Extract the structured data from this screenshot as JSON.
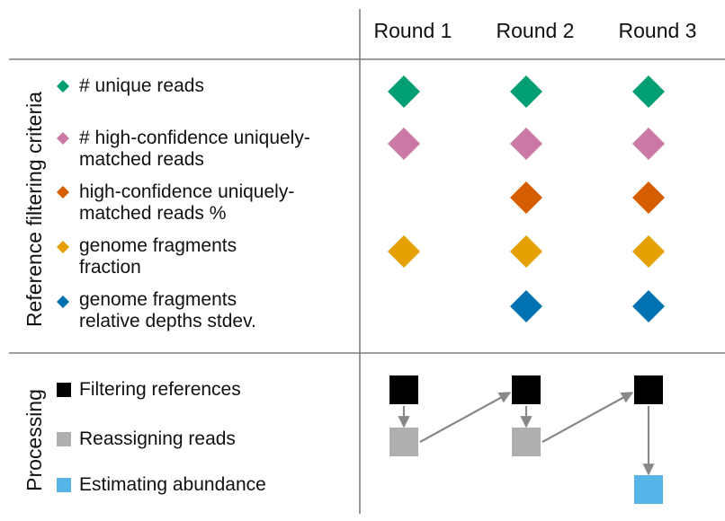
{
  "headers": [
    "Round 1",
    "Round 2",
    "Round 3"
  ],
  "sections": {
    "criteria_title": "Reference filtering criteria",
    "processing_title": "Processing"
  },
  "criteria": [
    {
      "line1": "# unique reads",
      "line2": "",
      "color": "#009E73",
      "rounds": [
        true,
        true,
        true
      ]
    },
    {
      "line1": "# high-confidence uniquely-",
      "line2": "matched reads",
      "color": "#CC79A7",
      "rounds": [
        true,
        true,
        true
      ]
    },
    {
      "line1": "high-confidence uniquely-",
      "line2": "matched reads %",
      "color": "#D55E00",
      "rounds": [
        false,
        true,
        true
      ]
    },
    {
      "line1": "genome fragments",
      "line2": "fraction",
      "color": "#E69F00",
      "rounds": [
        true,
        true,
        true
      ]
    },
    {
      "line1": "genome fragments",
      "line2": "relative depths stdev.",
      "color": "#0072B2",
      "rounds": [
        false,
        true,
        true
      ]
    }
  ],
  "processing": [
    {
      "label": "Filtering references",
      "color": "#000000"
    },
    {
      "label": "Reassigning reads",
      "color": "#B0AEAE"
    },
    {
      "label": "Estimating abundance",
      "color": "#56B4E9"
    }
  ],
  "arrow_color": "#888888",
  "line_color": "#7f7f7f"
}
